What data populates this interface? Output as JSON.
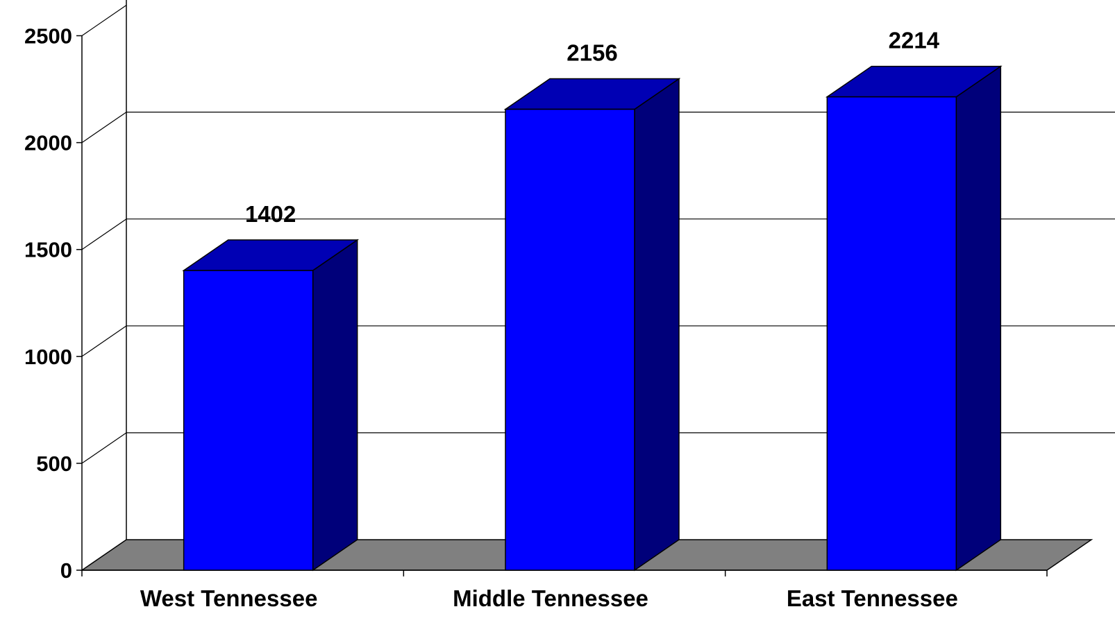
{
  "chart_data": {
    "type": "bar",
    "categories": [
      "West Tennessee",
      "Middle Tennessee",
      "East Tennessee"
    ],
    "values": [
      1402,
      2156,
      2214
    ],
    "data_labels": [
      "1402",
      "2156",
      "2214"
    ],
    "title": "",
    "xlabel": "",
    "ylabel": "",
    "ylim": [
      0,
      2500
    ],
    "yticks": [
      0,
      500,
      1000,
      1500,
      2000,
      2500
    ],
    "ytick_labels": [
      "0",
      "500",
      "1000",
      "1500",
      "2000",
      "2500"
    ],
    "grid": true,
    "style": "3d",
    "colors": {
      "bar_front": "#0000ff",
      "bar_top": "#0000b4",
      "bar_side": "#00007a",
      "floor": "#808080",
      "background": "#ffffff"
    }
  }
}
